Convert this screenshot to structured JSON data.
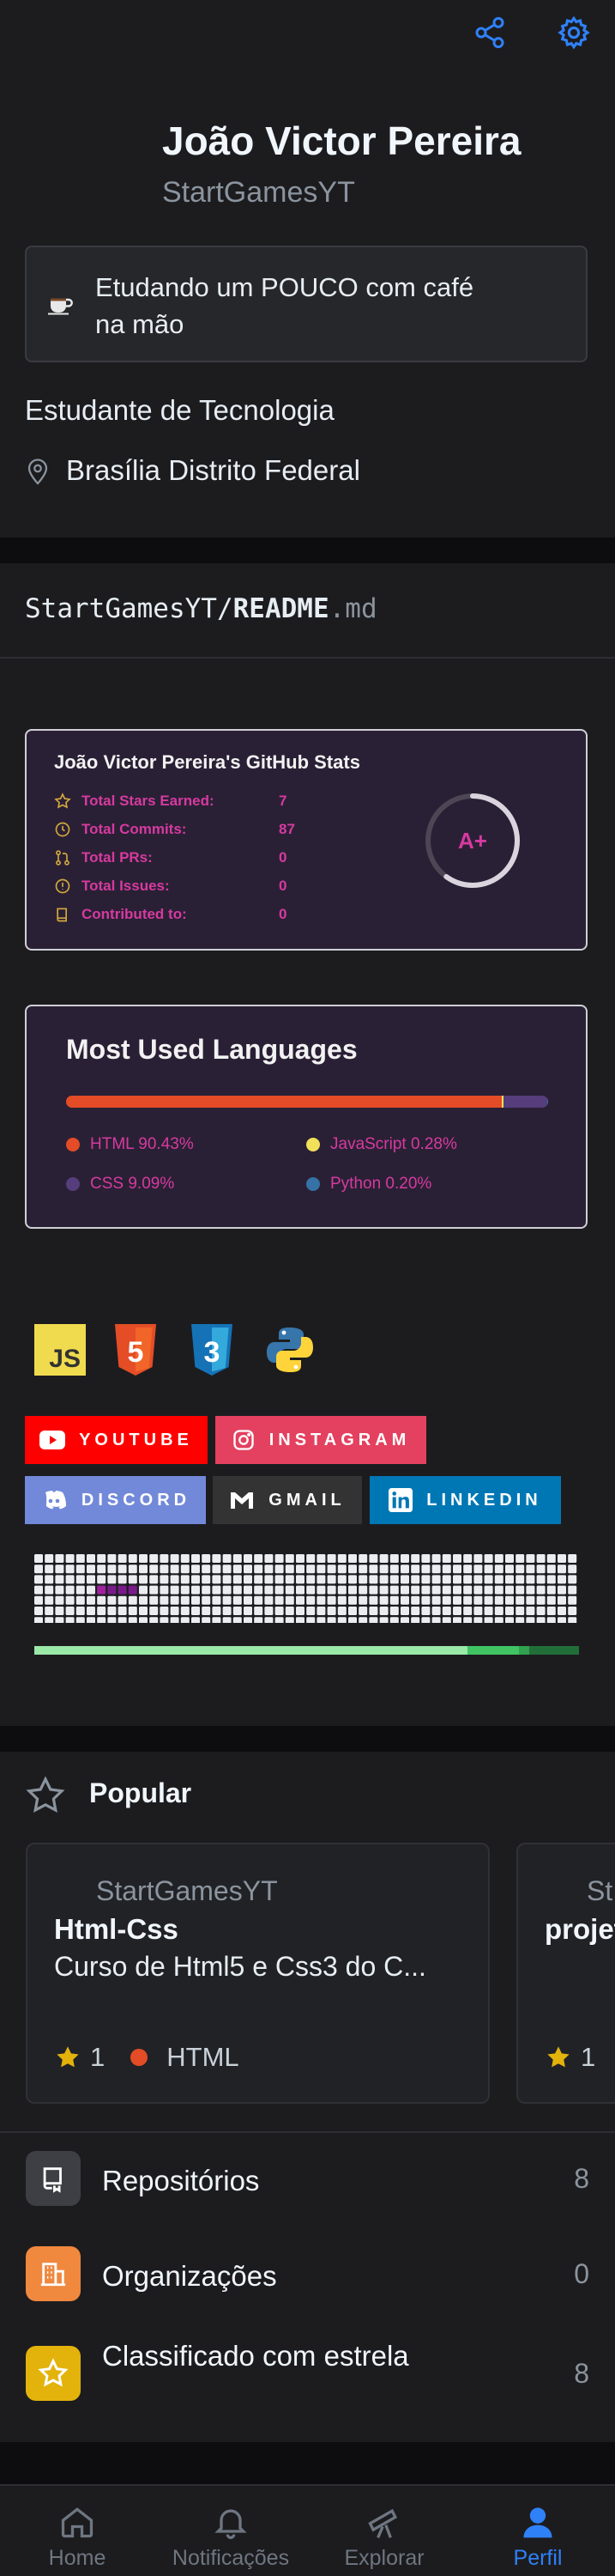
{
  "header": {
    "share_icon": "share-icon",
    "settings_icon": "gear-icon",
    "name": "João Victor Pereira",
    "login": "StartGamesYT",
    "status_text": "Etudando um POUCO com café na mão",
    "status_emoji": "coffee-icon",
    "bio": "Estudante de Tecnologia",
    "location": "Brasília Distrito Federal"
  },
  "readme": {
    "owner": "StartGamesYT/",
    "file": "README",
    "ext": ".md"
  },
  "stats_card": {
    "title": "João Victor Pereira's GitHub Stats",
    "rows": [
      {
        "label": "Total Stars Earned:",
        "value": "7",
        "icon": "star-icon"
      },
      {
        "label": "Total Commits:",
        "value": "87",
        "icon": "history-icon"
      },
      {
        "label": "Total PRs:",
        "value": "0",
        "icon": "pull-request-icon"
      },
      {
        "label": "Total Issues:",
        "value": "0",
        "icon": "issue-icon"
      },
      {
        "label": "Contributed to:",
        "value": "0",
        "icon": "repo-icon"
      }
    ],
    "grade": "A+",
    "grade_progress": 0.6,
    "accent_color": "#d63aa0"
  },
  "languages_card": {
    "title": "Most Used Languages",
    "languages": [
      {
        "name": "HTML 90.43%",
        "percent": 90.43,
        "color": "#e34c26"
      },
      {
        "name": "JavaScript 0.28%",
        "percent": 0.28,
        "color": "#f1e05a"
      },
      {
        "name": "CSS 9.09%",
        "percent": 9.09,
        "color": "#563d7c"
      },
      {
        "name": "Python 0.20%",
        "percent": 0.2,
        "color": "#3572A5"
      }
    ]
  },
  "tech_icons": [
    "js-logo-icon",
    "html5-logo-icon",
    "css3-logo-icon",
    "python-logo-icon"
  ],
  "tech_icon_labels": {
    "js": "JS",
    "html": "5",
    "css": "3"
  },
  "badges": [
    {
      "label": "YOUTUBE",
      "color": "#ff0000",
      "icon": "youtube-icon"
    },
    {
      "label": "INSTAGRAM",
      "color": "#e4405f",
      "icon": "instagram-icon"
    },
    {
      "label": "DISCORD",
      "color": "#7289da",
      "icon": "discord-icon"
    },
    {
      "label": "GMAIL",
      "color": "#333333",
      "icon": "gmail-icon"
    },
    {
      "label": "LINKEDIN",
      "color": "#0077b5",
      "icon": "linkedin-icon"
    }
  ],
  "popular": {
    "title": "Popular",
    "repos": [
      {
        "owner": "StartGamesYT",
        "name": "Html-Css",
        "description": "Curso de Html5 e Css3 do C...",
        "stars": "1",
        "language": "HTML",
        "language_color": "#e34c26"
      },
      {
        "owner": "St",
        "name": "projet",
        "description": "",
        "stars": "1",
        "language": "",
        "language_color": ""
      }
    ]
  },
  "menu": [
    {
      "label": "Repositórios",
      "count": "8",
      "icon": "repo-icon",
      "color": "#3d3f45"
    },
    {
      "label": "Organizações",
      "count": "0",
      "icon": "organization-icon",
      "color": "#f0883e"
    },
    {
      "label": "Classificado com estrela",
      "count": "8",
      "icon": "star-icon",
      "color": "#e3b30c"
    }
  ],
  "bottom_nav": [
    {
      "label": "Home",
      "icon": "home-icon",
      "active": false
    },
    {
      "label": "Notificações",
      "icon": "bell-icon",
      "active": false
    },
    {
      "label": "Explorar",
      "icon": "telescope-icon",
      "active": false
    },
    {
      "label": "Perfil",
      "icon": "person-icon",
      "active": true
    }
  ]
}
